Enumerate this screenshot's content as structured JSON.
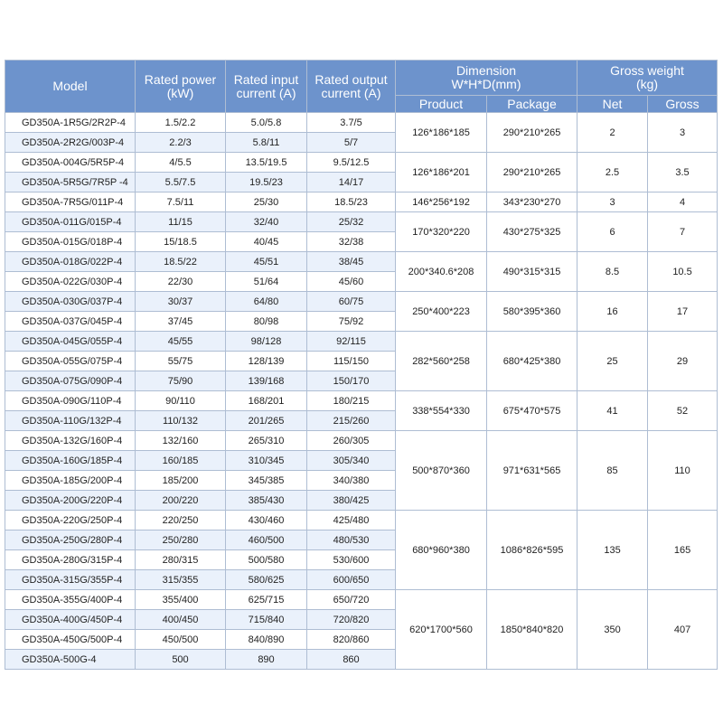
{
  "headers": {
    "model": "Model",
    "rated_power": "Rated power\n(kW)",
    "rated_input": "Rated input\ncurrent (A)",
    "rated_output": "Rated output\ncurrent (A)",
    "dimension": "Dimension\nW*H*D(mm)",
    "gross_weight": "Gross weight\n(kg)",
    "product": "Product",
    "package": "Package",
    "net": "Net",
    "gross": "Gross"
  },
  "rows": [
    {
      "model": "GD350A-1R5G/2R2P-4",
      "power": "1.5/2.2",
      "input": "5.0/5.8",
      "output": "3.7/5"
    },
    {
      "model": "GD350A-2R2G/003P-4",
      "power": "2.2/3",
      "input": "5.8/11",
      "output": "5/7"
    },
    {
      "model": "GD350A-004G/5R5P-4",
      "power": "4/5.5",
      "input": "13.5/19.5",
      "output": "9.5/12.5"
    },
    {
      "model": "GD350A-5R5G/7R5P -4",
      "power": "5.5/7.5",
      "input": "19.5/23",
      "output": "14/17"
    },
    {
      "model": "GD350A-7R5G/011P-4",
      "power": "7.5/11",
      "input": "25/30",
      "output": "18.5/23"
    },
    {
      "model": "GD350A-011G/015P-4",
      "power": "11/15",
      "input": "32/40",
      "output": "25/32"
    },
    {
      "model": "GD350A-015G/018P-4",
      "power": "15/18.5",
      "input": "40/45",
      "output": "32/38"
    },
    {
      "model": "GD350A-018G/022P-4",
      "power": "18.5/22",
      "input": "45/51",
      "output": "38/45"
    },
    {
      "model": "GD350A-022G/030P-4",
      "power": "22/30",
      "input": "51/64",
      "output": "45/60"
    },
    {
      "model": "GD350A-030G/037P-4",
      "power": "30/37",
      "input": "64/80",
      "output": "60/75"
    },
    {
      "model": "GD350A-037G/045P-4",
      "power": "37/45",
      "input": "80/98",
      "output": "75/92"
    },
    {
      "model": "GD350A-045G/055P-4",
      "power": "45/55",
      "input": "98/128",
      "output": "92/115"
    },
    {
      "model": "GD350A-055G/075P-4",
      "power": "55/75",
      "input": "128/139",
      "output": "115/150"
    },
    {
      "model": "GD350A-075G/090P-4",
      "power": "75/90",
      "input": "139/168",
      "output": "150/170"
    },
    {
      "model": "GD350A-090G/110P-4",
      "power": "90/110",
      "input": "168/201",
      "output": "180/215"
    },
    {
      "model": "GD350A-110G/132P-4",
      "power": "110/132",
      "input": "201/265",
      "output": "215/260"
    },
    {
      "model": "GD350A-132G/160P-4",
      "power": "132/160",
      "input": "265/310",
      "output": "260/305"
    },
    {
      "model": "GD350A-160G/185P-4",
      "power": "160/185",
      "input": "310/345",
      "output": "305/340"
    },
    {
      "model": "GD350A-185G/200P-4",
      "power": "185/200",
      "input": "345/385",
      "output": "340/380"
    },
    {
      "model": "GD350A-200G/220P-4",
      "power": "200/220",
      "input": "385/430",
      "output": "380/425"
    },
    {
      "model": "GD350A-220G/250P-4",
      "power": "220/250",
      "input": "430/460",
      "output": "425/480"
    },
    {
      "model": "GD350A-250G/280P-4",
      "power": "250/280",
      "input": "460/500",
      "output": "480/530"
    },
    {
      "model": "GD350A-280G/315P-4",
      "power": "280/315",
      "input": "500/580",
      "output": "530/600"
    },
    {
      "model": "GD350A-315G/355P-4",
      "power": "315/355",
      "input": "580/625",
      "output": "600/650"
    },
    {
      "model": "GD350A-355G/400P-4",
      "power": "355/400",
      "input": "625/715",
      "output": "650/720"
    },
    {
      "model": "GD350A-400G/450P-4",
      "power": "400/450",
      "input": "715/840",
      "output": "720/820"
    },
    {
      "model": "GD350A-450G/500P-4",
      "power": "450/500",
      "input": "840/890",
      "output": "820/860"
    },
    {
      "model": "GD350A-500G-4",
      "power": "500",
      "input": "890",
      "output": "860"
    }
  ],
  "groups": [
    {
      "start": 0,
      "span": 2,
      "product": "126*186*185",
      "package": "290*210*265",
      "net": "2",
      "gross": "3"
    },
    {
      "start": 2,
      "span": 2,
      "product": "126*186*201",
      "package": "290*210*265",
      "net": "2.5",
      "gross": "3.5"
    },
    {
      "start": 4,
      "span": 1,
      "product": "146*256*192",
      "package": "343*230*270",
      "net": "3",
      "gross": "4"
    },
    {
      "start": 5,
      "span": 2,
      "product": "170*320*220",
      "package": "430*275*325",
      "net": "6",
      "gross": "7"
    },
    {
      "start": 7,
      "span": 2,
      "product": "200*340.6*208",
      "package": "490*315*315",
      "net": "8.5",
      "gross": "10.5"
    },
    {
      "start": 9,
      "span": 2,
      "product": "250*400*223",
      "package": "580*395*360",
      "net": "16",
      "gross": "17"
    },
    {
      "start": 11,
      "span": 3,
      "product": "282*560*258",
      "package": "680*425*380",
      "net": "25",
      "gross": "29"
    },
    {
      "start": 14,
      "span": 2,
      "product": "338*554*330",
      "package": "675*470*575",
      "net": "41",
      "gross": "52"
    },
    {
      "start": 16,
      "span": 4,
      "product": "500*870*360",
      "package": "971*631*565",
      "net": "85",
      "gross": "110"
    },
    {
      "start": 20,
      "span": 4,
      "product": "680*960*380",
      "package": "1086*826*595",
      "net": "135",
      "gross": "165"
    },
    {
      "start": 24,
      "span": 4,
      "product": "620*1700*560",
      "package": "1850*840*820",
      "net": "350",
      "gross": "407"
    }
  ],
  "colors": {
    "header_bg": "#6d93cc",
    "stripe": "#eaf1fb",
    "border": "#aebdd3"
  }
}
